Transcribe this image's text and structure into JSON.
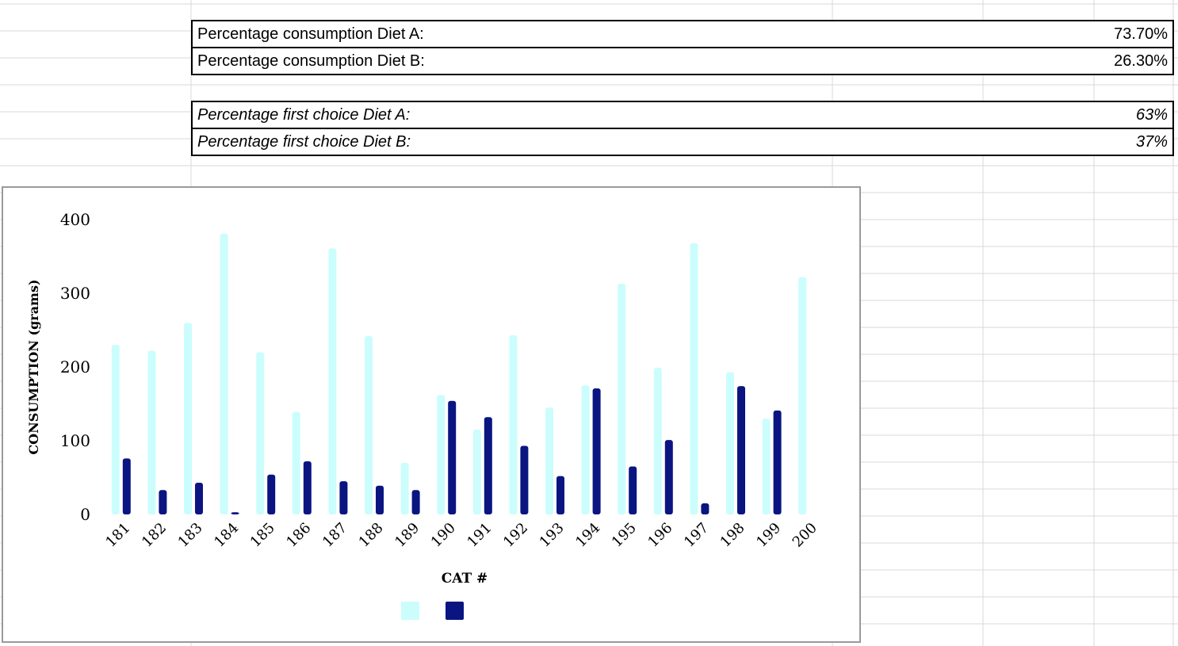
{
  "summary": {
    "rows": [
      {
        "label": "Percentage consumption Diet A:",
        "value": "73.70%",
        "italic": false
      },
      {
        "label": "Percentage consumption Diet B:",
        "value": "26.30%",
        "italic": false
      },
      {
        "label": "Percentage first choice Diet A:",
        "value": "63%",
        "italic": true
      },
      {
        "label": "Percentage first choice Diet B:",
        "value": "37%",
        "italic": true
      }
    ]
  },
  "colors": {
    "diet_a": "#ccfdfd",
    "diet_b": "#0a1581",
    "gridline": "#d9d9d9",
    "border": "#000000"
  },
  "chart_data": {
    "type": "bar",
    "title": "",
    "xlabel": "CAT #",
    "ylabel": "CONSUMPTION (grams)",
    "ylim": [
      0,
      400
    ],
    "yticks": [
      0,
      100,
      200,
      300,
      400
    ],
    "categories": [
      "181",
      "182",
      "183",
      "184",
      "185",
      "186",
      "187",
      "188",
      "189",
      "190",
      "191",
      "192",
      "193",
      "194",
      "195",
      "196",
      "197",
      "198",
      "199",
      "200"
    ],
    "series": [
      {
        "values": [
          230,
          222,
          260,
          381,
          220,
          139,
          361,
          242,
          70,
          162,
          115,
          243,
          145,
          175,
          313,
          199,
          368,
          193,
          130,
          322
        ]
      },
      {
        "values": [
          76,
          33,
          43,
          3,
          54,
          72,
          45,
          39,
          33,
          154,
          132,
          93,
          52,
          171,
          65,
          101,
          15,
          174,
          141,
          0
        ]
      }
    ],
    "grid": false,
    "legend": "bottom"
  }
}
